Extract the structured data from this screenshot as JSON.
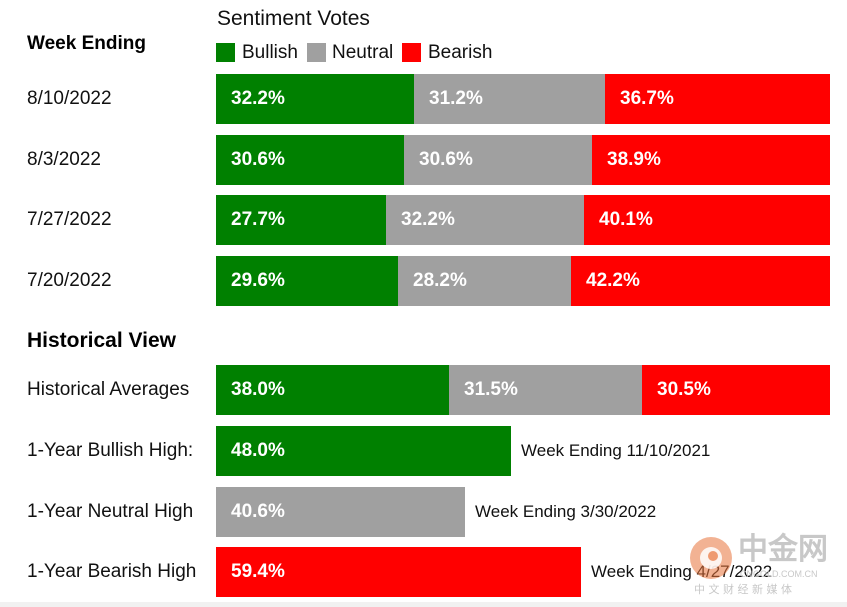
{
  "chart_data": {
    "type": "bar",
    "title": "Sentiment Votes",
    "stacked": true,
    "orientation": "horizontal",
    "xlim": [
      0,
      100
    ],
    "legend": {
      "placement": "top",
      "entries": [
        {
          "name": "Bullish",
          "color": "#008000"
        },
        {
          "name": "Neutral",
          "color": "#a0a0a0"
        },
        {
          "name": "Bearish",
          "color": "#ff0000"
        }
      ]
    },
    "sections": [
      {
        "heading": "Week Ending",
        "rows": [
          {
            "label": "8/10/2022",
            "values": [
              32.2,
              31.2,
              36.7
            ],
            "labels": [
              "32.2%",
              "31.2%",
              "36.7%"
            ]
          },
          {
            "label": "8/3/2022",
            "values": [
              30.6,
              30.6,
              38.9
            ],
            "labels": [
              "30.6%",
              "30.6%",
              "38.9%"
            ]
          },
          {
            "label": "7/27/2022",
            "values": [
              27.7,
              32.2,
              40.1
            ],
            "labels": [
              "27.7%",
              "32.2%",
              "40.1%"
            ]
          },
          {
            "label": "7/20/2022",
            "values": [
              29.6,
              28.2,
              42.2
            ],
            "labels": [
              "29.6%",
              "28.2%",
              "42.2%"
            ]
          }
        ]
      },
      {
        "heading": "Historical View",
        "rows": [
          {
            "label": "Historical Averages",
            "values": [
              38.0,
              31.5,
              30.5
            ],
            "labels": [
              "38.0%",
              "31.5%",
              "30.5%"
            ]
          },
          {
            "label": "1-Year Bullish High:",
            "single": {
              "series": 0,
              "value": 48.0,
              "label": "48.0%"
            },
            "note": "Week Ending 11/10/2021"
          },
          {
            "label": "1-Year Neutral High",
            "single": {
              "series": 1,
              "value": 40.6,
              "label": "40.6%"
            },
            "note": "Week Ending 3/30/2022"
          },
          {
            "label": "1-Year Bearish High",
            "single": {
              "series": 2,
              "value": 59.4,
              "label": "59.4%"
            },
            "note": "Week Ending 4/27/2022"
          }
        ]
      }
    ]
  },
  "watermark": {
    "brand": "中金网",
    "domain": "CNGOLD.COM.CN",
    "tagline": "中 文 财 经 新 媒 体",
    "colors": {
      "logo": "#e8733a",
      "text": "#c8c8c8"
    }
  }
}
